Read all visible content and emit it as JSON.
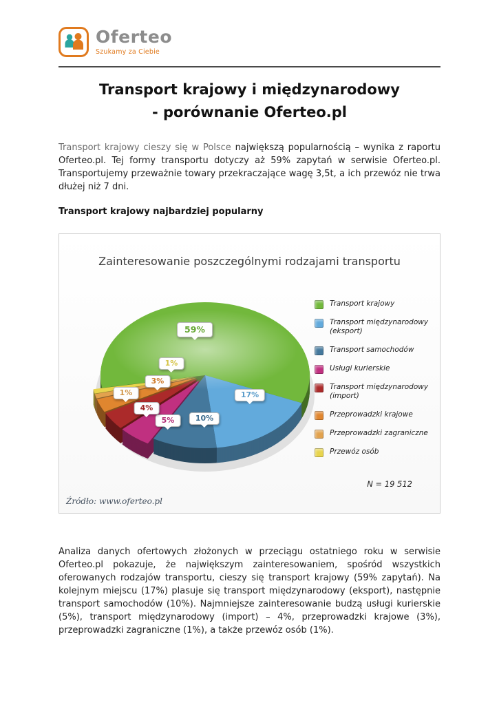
{
  "logo": {
    "brand": "Oferteo",
    "tagline": "Szukamy za Ciebie"
  },
  "document": {
    "title_line1": "Transport krajowy i międzynarodowy",
    "title_line2": "- porównanie Oferteo.pl",
    "intro_lead": "Transport krajowy cieszy się w Polsce",
    "intro_rest": "największą popularnością – wynika z raportu Oferteo.pl. Tej formy transportu dotyczy aż 59% zapytań w serwisie Oferteo.pl. Transportujemy przeważnie towary przekraczające wagę 3,5t, a ich przewóz nie trwa dłużej niż 7 dni.",
    "subheading": "Transport krajowy najbardziej popularny",
    "analysis": "Analiza danych ofertowych złożonych w przeciągu ostatniego roku w serwisie Oferteo.pl pokazuje, że największym zainteresowaniem, spośród wszystkich oferowanych rodzajów transportu, cieszy się transport krajowy (59% zapytań). Na kolejnym miejscu (17%) plasuje się transport międzynarodowy (eksport), następnie transport samochodów (10%). Najmniejsze zainteresowanie budzą usługi kurierskie (5%), transport międzynarodowy (import) – 4%, przeprowadzki krajowe (3%), przeprowadzki zagraniczne (1%), a także przewóz osób (1%)."
  },
  "chart_data": {
    "type": "pie",
    "title": "Zainteresowanie poszczególnymi rodzajami transportu",
    "labels": [
      "Transport krajowy",
      "Transport międzynarodowy (eksport)",
      "Transport samochodów",
      "Usługi kurierskie",
      "Transport międzynarodowy (import)",
      "Przeprowadzki krajowe",
      "Przeprowadzki zagraniczne",
      "Przewóz osób"
    ],
    "values": [
      59,
      17,
      10,
      5,
      4,
      3,
      1,
      1
    ],
    "colors": [
      "#72b83c",
      "#62aadc",
      "#44789c",
      "#c03080",
      "#ab2a2a",
      "#e0862f",
      "#e2a24e",
      "#e8d44d"
    ],
    "unit": "%",
    "sample_note": "N = 19 512",
    "source": "Źródło: www.oferteo.pl",
    "legend_position": "right",
    "start_angle_deg": 260,
    "style": "3d-exploded"
  }
}
